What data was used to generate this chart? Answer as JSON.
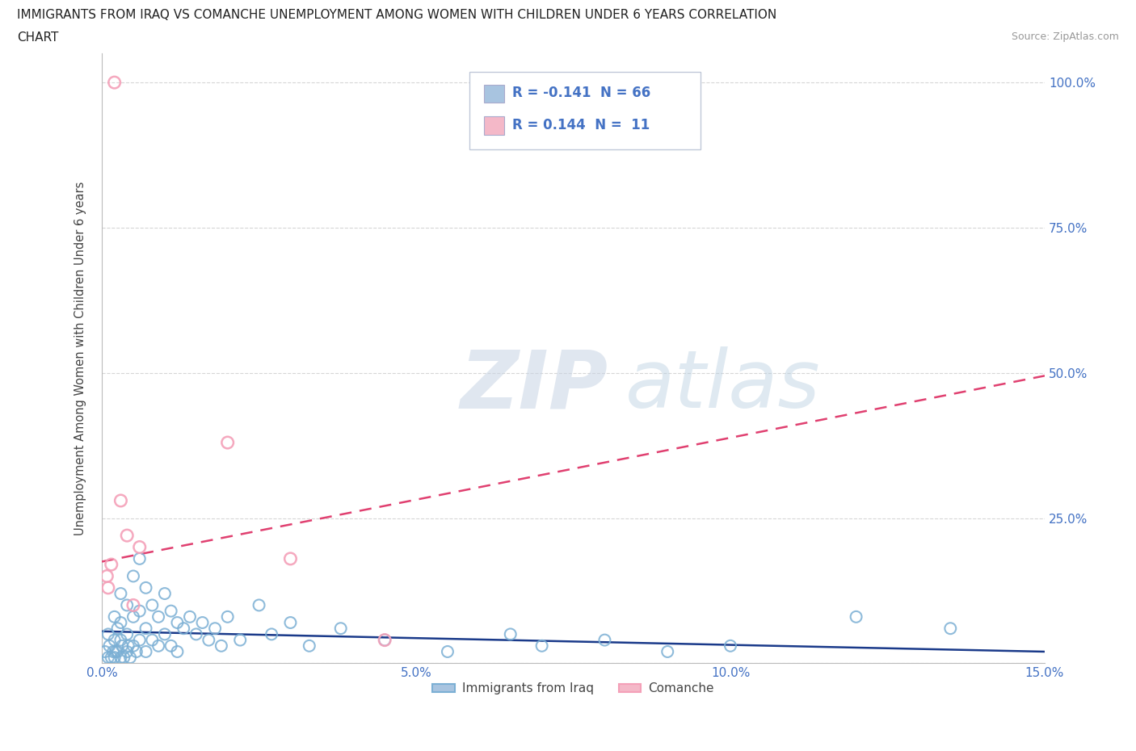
{
  "title_line1": "IMMIGRANTS FROM IRAQ VS COMANCHE UNEMPLOYMENT AMONG WOMEN WITH CHILDREN UNDER 6 YEARS CORRELATION",
  "title_line2": "CHART",
  "source": "Source: ZipAtlas.com",
  "ylabel": "Unemployment Among Women with Children Under 6 years",
  "x_lim": [
    0.0,
    0.15
  ],
  "y_lim": [
    0.0,
    1.05
  ],
  "x_ticks": [
    0.0,
    0.05,
    0.1,
    0.15
  ],
  "x_tick_labels": [
    "0.0%",
    "5.0%",
    "10.0%",
    "15.0%"
  ],
  "y_ticks": [
    0.0,
    0.25,
    0.5,
    0.75,
    1.0
  ],
  "y_tick_labels_right": [
    "",
    "25.0%",
    "50.0%",
    "75.0%",
    "100.0%"
  ],
  "iraq_r": -0.141,
  "iraq_n": 66,
  "comanche_r": 0.144,
  "comanche_n": 11,
  "iraq_scatter_color": "#7bafd4",
  "comanche_scatter_color": "#f4a0b8",
  "iraq_line_color": "#1a3a8a",
  "comanche_line_color": "#e04070",
  "legend_iraq_swatch": "#a8c4e0",
  "legend_comanche_swatch": "#f4b8c8",
  "grid_color": "#cccccc",
  "background_color": "#ffffff",
  "watermark_color": "#cdd8e8",
  "legend_bottom_labels": [
    "Immigrants from Iraq",
    "Comanche"
  ],
  "tick_color": "#4472c4",
  "title_color": "#222222",
  "source_color": "#999999",
  "iraq_x": [
    0.0005,
    0.001,
    0.001,
    0.0012,
    0.0015,
    0.0018,
    0.002,
    0.002,
    0.002,
    0.0022,
    0.0025,
    0.0025,
    0.003,
    0.003,
    0.003,
    0.003,
    0.0032,
    0.0035,
    0.004,
    0.004,
    0.004,
    0.0042,
    0.0045,
    0.005,
    0.005,
    0.005,
    0.0055,
    0.006,
    0.006,
    0.006,
    0.007,
    0.007,
    0.007,
    0.008,
    0.008,
    0.009,
    0.009,
    0.01,
    0.01,
    0.011,
    0.011,
    0.012,
    0.012,
    0.013,
    0.014,
    0.015,
    0.016,
    0.017,
    0.018,
    0.019,
    0.02,
    0.022,
    0.025,
    0.027,
    0.03,
    0.033,
    0.038,
    0.045,
    0.055,
    0.065,
    0.07,
    0.08,
    0.09,
    0.1,
    0.12,
    0.135
  ],
  "iraq_y": [
    0.02,
    0.05,
    0.01,
    0.03,
    0.01,
    0.02,
    0.08,
    0.04,
    0.01,
    0.02,
    0.06,
    0.02,
    0.12,
    0.07,
    0.04,
    0.01,
    0.03,
    0.01,
    0.1,
    0.05,
    0.02,
    0.03,
    0.01,
    0.15,
    0.08,
    0.03,
    0.02,
    0.18,
    0.09,
    0.04,
    0.13,
    0.06,
    0.02,
    0.1,
    0.04,
    0.08,
    0.03,
    0.12,
    0.05,
    0.09,
    0.03,
    0.07,
    0.02,
    0.06,
    0.08,
    0.05,
    0.07,
    0.04,
    0.06,
    0.03,
    0.08,
    0.04,
    0.1,
    0.05,
    0.07,
    0.03,
    0.06,
    0.04,
    0.02,
    0.05,
    0.03,
    0.04,
    0.02,
    0.03,
    0.08,
    0.06
  ],
  "comanche_x": [
    0.0008,
    0.001,
    0.0015,
    0.002,
    0.003,
    0.004,
    0.005,
    0.006,
    0.02,
    0.03,
    0.045
  ],
  "comanche_y": [
    0.15,
    0.13,
    0.17,
    1.0,
    0.28,
    0.22,
    0.1,
    0.2,
    0.38,
    0.18,
    0.04
  ],
  "iraq_trend_x": [
    0.0,
    0.15
  ],
  "iraq_trend_y": [
    0.055,
    0.02
  ],
  "comanche_trend_x": [
    0.0,
    0.15
  ],
  "comanche_trend_y": [
    0.175,
    0.495
  ]
}
